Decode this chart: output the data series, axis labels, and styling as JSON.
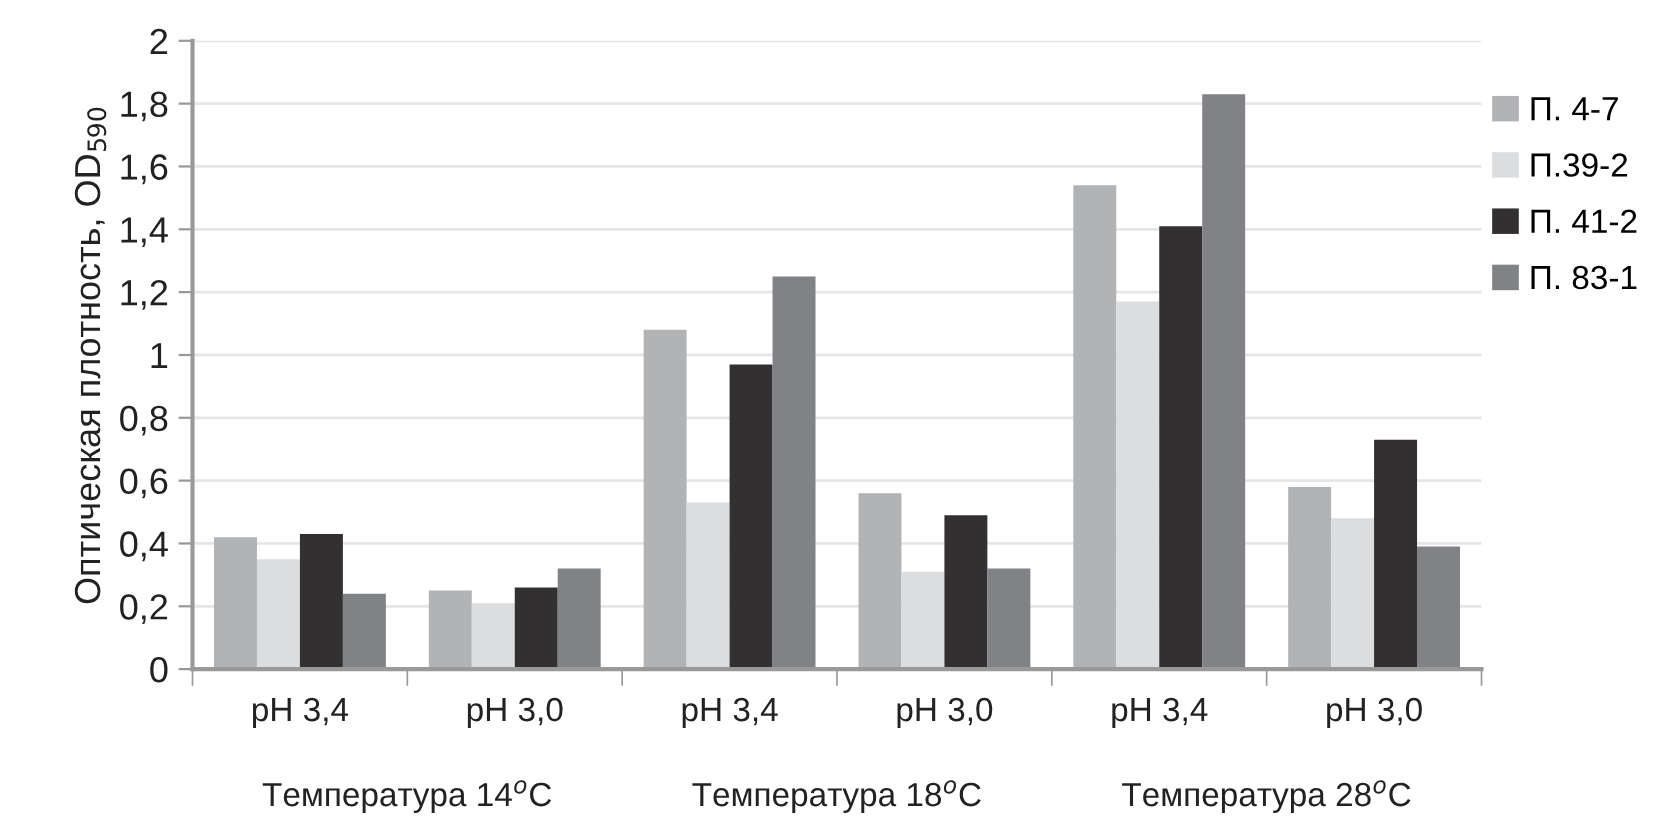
{
  "chart_data": {
    "type": "bar",
    "ylabel": "Оптическая плотность, OD$_{590}$",
    "categories": [
      "pH 3,4",
      "pH 3,0",
      "pH 3,4",
      "pH 3,0",
      "pH 3,4",
      "pH 3,0"
    ],
    "series": [
      {
        "name": "П. 4-7",
        "color": "#b2b3b5",
        "values": [
          0.42,
          0.25,
          1.08,
          0.56,
          1.54,
          0.58
        ]
      },
      {
        "name": "П.39-2",
        "color": "#dcdddf",
        "values": [
          0.35,
          0.21,
          0.53,
          0.31,
          1.17,
          0.48
        ]
      },
      {
        "name": "П. 41-2",
        "color": "#323031",
        "values": [
          0.43,
          0.26,
          0.97,
          0.49,
          1.41,
          0.73
        ]
      },
      {
        "name": "П. 83-1",
        "color": "#818285",
        "values": [
          0.24,
          0.32,
          1.25,
          0.32,
          1.83,
          0.39
        ]
      }
    ],
    "annotations": [
      "Температура 14$^{o}$C",
      "Температура 18$^{o}$C",
      "Температура 28$^{o}$C"
    ],
    "ylim": [
      0,
      2
    ],
    "yticks": [
      0,
      {
        "value": 0.2,
        "label": "0,2"
      },
      {
        "value": 0.4,
        "label": "0,4"
      },
      {
        "value": 0.6,
        "label": "0,6"
      },
      {
        "value": 0.8,
        "label": "0,8"
      },
      1,
      {
        "value": 1.2,
        "label": "1,2"
      },
      {
        "value": 1.4,
        "label": "1,4"
      },
      {
        "value": 1.6,
        "label": "1,6"
      },
      {
        "value": 1.8,
        "label": "1,8"
      },
      2
    ],
    "grid": "y",
    "legend": "right"
  }
}
